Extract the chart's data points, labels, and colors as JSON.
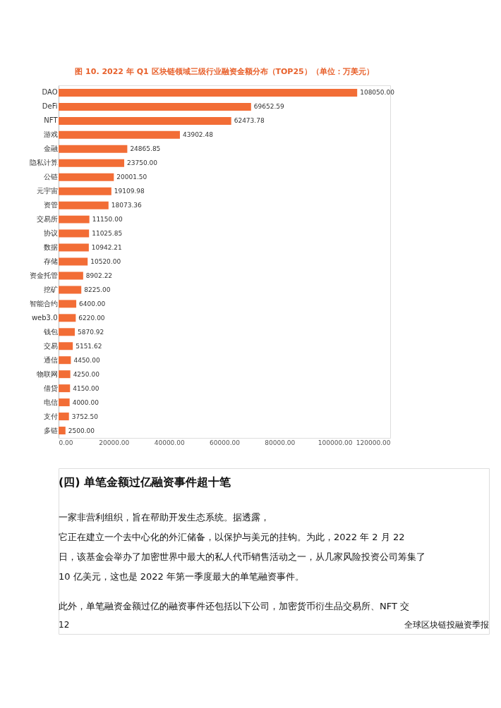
{
  "chart_data": {
    "type": "bar",
    "orientation": "horizontal",
    "title": "图 10.  2022 年 Q1 区块链领域三级行业融资金额分布（TOP25）（单位：万美元）",
    "categories": [
      "DAO",
      "DeFi",
      "NFT",
      "游戏",
      "金融",
      "隐私计算",
      "公链",
      "元宇宙",
      "资管",
      "交易所",
      "协议",
      "数据",
      "存储",
      "资金托管",
      "挖矿",
      "智能合约",
      "web3.0",
      "钱包",
      "交易",
      "通信",
      "物联网",
      "借贷",
      "电信",
      "支付",
      "多链"
    ],
    "values": [
      108050.0,
      69652.59,
      62473.78,
      43902.48,
      24865.85,
      23750.0,
      20001.5,
      19109.98,
      18073.36,
      11150.0,
      11025.85,
      10942.21,
      10520.0,
      8902.22,
      8225.0,
      6400.0,
      6220.0,
      5870.92,
      5151.62,
      4450.0,
      4250.0,
      4150.0,
      4000.0,
      3752.5,
      2500.0
    ],
    "value_labels": [
      "108050.00",
      "69652.59",
      "62473.78",
      "43902.48",
      "24865.85",
      "23750.00",
      "20001.50",
      "19109.98",
      "18073.36",
      "11150.00",
      "11025.85",
      "10942.21",
      "10520.00",
      "8902.22",
      "8225.00",
      "6400.00",
      "6220.00",
      "5870.92",
      "5151.62",
      "4450.00",
      "4250.00",
      "4150.00",
      "4000.00",
      "3752.50",
      "2500.00"
    ],
    "color": "#f26d36",
    "xlim": [
      0,
      120000
    ],
    "xticks": [
      {
        "value": 0,
        "label": "0.00"
      },
      {
        "value": 20000,
        "label": "20000.00"
      },
      {
        "value": 40000,
        "label": "40000.00"
      },
      {
        "value": 60000,
        "label": "60000.00"
      },
      {
        "value": 80000,
        "label": "80000.00"
      },
      {
        "value": 100000,
        "label": "100000.00"
      },
      {
        "value": 120000,
        "label": "120000.00"
      }
    ],
    "grid": false,
    "annotations": [
      "(四) 单笔金额过亿融资事件超十笔",
      "一家非营利组织，旨在帮助开发生态系统。据透露，",
      "它正在建立一个去中心化的外汇储备，以保护与美元的挂钩。为此，2022 年 2 月 22",
      "日，该基金会举办了加密世界中最大的私人代币销售活动之一，从几家风险投资公司筹集了",
      "10 亿美元，这也是 2022 年第一季度最大的单笔融资事件。",
      "此外，单笔融资金额过亿的融资事件还包括以下公司，加密货币衍生品交易所、NFT 交",
      "全球区块链投融资季报",
      "12"
    ]
  }
}
